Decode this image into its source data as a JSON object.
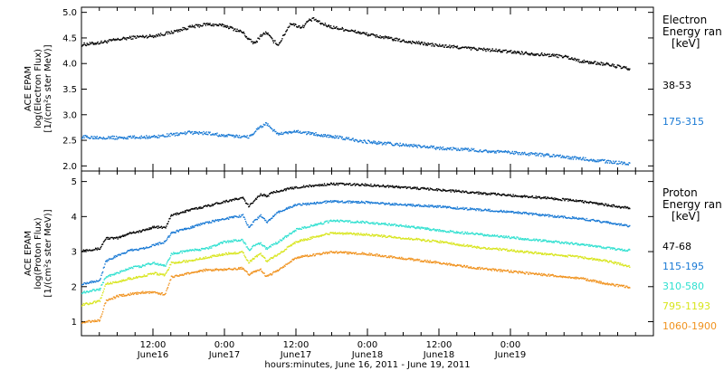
{
  "chart_data": [
    {
      "type": "line",
      "ylabel_lines": [
        "ACE EPAM",
        "log(Electron Flux)",
        "[1/(cm²s ster MeV)]"
      ],
      "ylim": [
        1.9,
        5.1
      ],
      "yticks": [
        "2.0",
        "2.5",
        "3.0",
        "3.5",
        "4.0",
        "4.5",
        "5.0"
      ],
      "xlim_hours": [
        0,
        96
      ],
      "legend": {
        "placement": "right",
        "title": "Electron",
        "subtitle": "Energy ran",
        "unit": "[keV]"
      },
      "series": [
        {
          "name": "38-53",
          "color": "#000000",
          "x": [
            0,
            3,
            6,
            9,
            12,
            15,
            18,
            21,
            24,
            27,
            28,
            29,
            30,
            31,
            32,
            33,
            35,
            36,
            37,
            38,
            39,
            40,
            42,
            44,
            48,
            54,
            60,
            66,
            72,
            78,
            81,
            84,
            88,
            90,
            92
          ],
          "values": [
            4.38,
            4.42,
            4.48,
            4.53,
            4.55,
            4.62,
            4.72,
            4.78,
            4.75,
            4.62,
            4.48,
            4.4,
            4.56,
            4.62,
            4.46,
            4.38,
            4.8,
            4.75,
            4.72,
            4.85,
            4.88,
            4.8,
            4.72,
            4.68,
            4.58,
            4.45,
            4.36,
            4.3,
            4.24,
            4.18,
            4.15,
            4.05,
            4.0,
            3.95,
            3.9
          ]
        },
        {
          "name": "175-315",
          "color": "#1778d4",
          "x": [
            0,
            6,
            12,
            18,
            21,
            24,
            28,
            30,
            31,
            32,
            33,
            36,
            40,
            44,
            48,
            54,
            60,
            66,
            72,
            78,
            84,
            88,
            92
          ],
          "values": [
            2.58,
            2.56,
            2.58,
            2.66,
            2.65,
            2.6,
            2.58,
            2.78,
            2.84,
            2.72,
            2.63,
            2.68,
            2.62,
            2.55,
            2.48,
            2.42,
            2.36,
            2.32,
            2.27,
            2.22,
            2.15,
            2.1,
            2.05
          ]
        }
      ]
    },
    {
      "type": "line",
      "ylabel_lines": [
        "ACE EPAM",
        "log(Proton Flux)",
        "[1/(cm²s ster MeV)]"
      ],
      "ylim": [
        0.6,
        5.3
      ],
      "yticks": [
        "1",
        "2",
        "3",
        "4",
        "5"
      ],
      "xlim_hours": [
        0,
        96
      ],
      "xtick_times": [
        "12:00",
        "0:00",
        "12:00",
        "0:00",
        "12:00",
        "0:00"
      ],
      "xtick_dates": [
        "June16",
        "June17",
        "June17",
        "June18",
        "June18",
        "June19"
      ],
      "xtick_hours": [
        12,
        24,
        36,
        48,
        60,
        72
      ],
      "legend": {
        "placement": "right",
        "title": "Proton",
        "subtitle": "Energy ran",
        "unit": "[keV]"
      },
      "series": [
        {
          "name": "47-68",
          "color": "#000000",
          "x": [
            0,
            3,
            4,
            6,
            8,
            10,
            12,
            14,
            15,
            18,
            21,
            24,
            27,
            28,
            29,
            30,
            31,
            32,
            33,
            36,
            42,
            48,
            54,
            60,
            66,
            72,
            78,
            84,
            88,
            92
          ],
          "values": [
            3.05,
            3.1,
            3.4,
            3.4,
            3.55,
            3.6,
            3.72,
            3.7,
            4.05,
            4.2,
            4.32,
            4.45,
            4.55,
            4.3,
            4.5,
            4.65,
            4.6,
            4.7,
            4.75,
            4.85,
            4.95,
            4.92,
            4.85,
            4.78,
            4.7,
            4.62,
            4.55,
            4.45,
            4.35,
            4.25
          ]
        },
        {
          "name": "115-195",
          "color": "#1778d4",
          "x": [
            0,
            3,
            4,
            6,
            8,
            10,
            12,
            14,
            15,
            18,
            21,
            24,
            27,
            28,
            29,
            30,
            31,
            32,
            33,
            36,
            42,
            48,
            54,
            60,
            66,
            72,
            78,
            84,
            88,
            92
          ],
          "values": [
            2.1,
            2.2,
            2.75,
            2.9,
            3.05,
            3.1,
            3.2,
            3.3,
            3.55,
            3.7,
            3.85,
            3.95,
            4.05,
            3.7,
            3.9,
            4.05,
            3.85,
            4.0,
            4.15,
            4.35,
            4.45,
            4.42,
            4.35,
            4.3,
            4.22,
            4.15,
            4.05,
            3.95,
            3.85,
            3.75
          ]
        },
        {
          "name": "310-580",
          "color": "#2fe0d0",
          "x": [
            0,
            3,
            4,
            6,
            8,
            10,
            12,
            14,
            15,
            18,
            21,
            24,
            27,
            28,
            29,
            30,
            31,
            32,
            33,
            36,
            42,
            48,
            54,
            60,
            66,
            72,
            78,
            84,
            88,
            92
          ],
          "values": [
            1.85,
            1.95,
            2.3,
            2.4,
            2.55,
            2.6,
            2.7,
            2.6,
            2.95,
            3.05,
            3.1,
            3.3,
            3.35,
            3.05,
            3.2,
            3.25,
            3.1,
            3.2,
            3.3,
            3.65,
            3.9,
            3.85,
            3.75,
            3.62,
            3.52,
            3.42,
            3.32,
            3.22,
            3.12,
            3.05
          ]
        },
        {
          "name": "795-1193",
          "color": "#d8e51c",
          "x": [
            0,
            3,
            4,
            6,
            8,
            10,
            12,
            14,
            15,
            18,
            21,
            24,
            27,
            28,
            29,
            30,
            31,
            32,
            33,
            36,
            42,
            48,
            54,
            60,
            66,
            72,
            78,
            84,
            88,
            92
          ],
          "values": [
            1.5,
            1.6,
            2.1,
            2.15,
            2.25,
            2.3,
            2.4,
            2.35,
            2.7,
            2.75,
            2.85,
            2.95,
            3.0,
            2.7,
            2.85,
            2.95,
            2.75,
            2.85,
            2.95,
            3.3,
            3.55,
            3.5,
            3.4,
            3.3,
            3.15,
            3.05,
            2.95,
            2.85,
            2.75,
            2.6
          ]
        },
        {
          "name": "1060-1900",
          "color": "#f0921e",
          "x": [
            0,
            3,
            4,
            6,
            8,
            10,
            12,
            14,
            15,
            18,
            21,
            24,
            27,
            28,
            29,
            30,
            31,
            32,
            33,
            36,
            42,
            48,
            54,
            60,
            66,
            72,
            78,
            84,
            88,
            92
          ],
          "values": [
            1.0,
            1.05,
            1.6,
            1.75,
            1.8,
            1.85,
            1.85,
            1.8,
            2.3,
            2.4,
            2.5,
            2.5,
            2.55,
            2.35,
            2.45,
            2.5,
            2.3,
            2.4,
            2.5,
            2.85,
            3.0,
            2.95,
            2.82,
            2.7,
            2.55,
            2.45,
            2.35,
            2.25,
            2.1,
            2.0
          ]
        }
      ]
    }
  ],
  "x_title": "hours:minutes, June 16, 2011 - June 19, 2011"
}
